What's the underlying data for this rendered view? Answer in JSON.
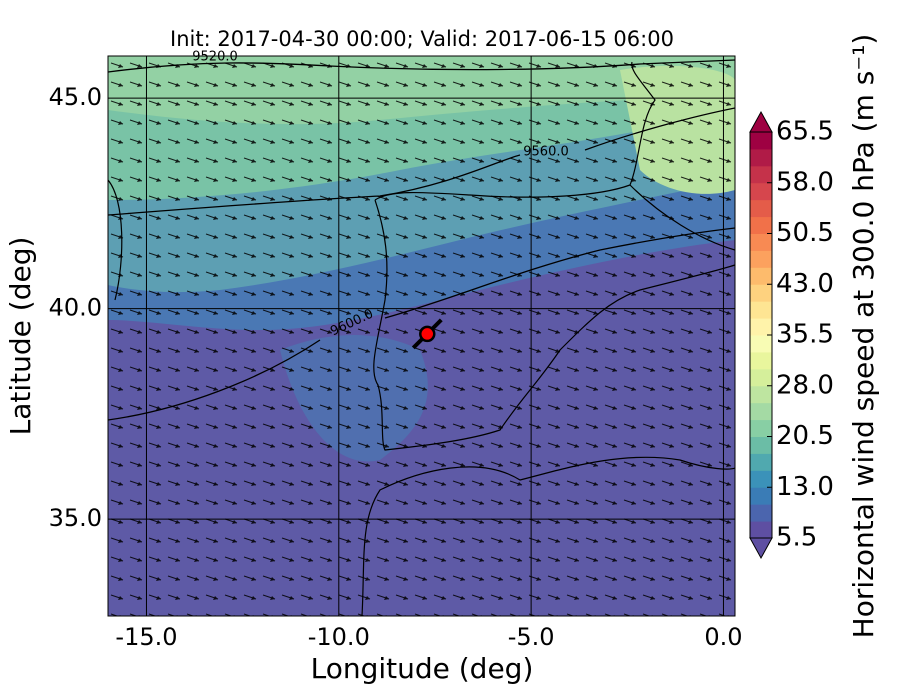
{
  "chart_data": {
    "type": "map",
    "title": "Init: 2017-04-30 00:00; Valid: 2017-06-15 06:00",
    "x_label": "Longitude (deg)",
    "y_label": "Latitude (deg)",
    "xlim": [
      -16,
      0.3
    ],
    "ylim": [
      32.7,
      46.0
    ],
    "xticks": [
      {
        "value": -15,
        "label": "-15.0"
      },
      {
        "value": -10,
        "label": "-10.0"
      },
      {
        "value": -5,
        "label": "-5.0"
      },
      {
        "value": 0,
        "label": "0.0"
      }
    ],
    "yticks": [
      {
        "value": 35,
        "label": "35.0"
      },
      {
        "value": 40,
        "label": "40.0"
      },
      {
        "value": 45,
        "label": "45.0"
      }
    ],
    "grid": true,
    "contour_labels": [
      "9520.0",
      "9560.0",
      "9600.0"
    ],
    "markers": [
      {
        "x": -7.7,
        "y": 39.4,
        "color": "#ff0000"
      }
    ],
    "colorbar": {
      "label": "Horizontal wind speed at 300.0 hPa (m s⁻¹)",
      "lim": [
        5.5,
        65.5
      ],
      "ticks": [
        5.5,
        {
          "value": 13,
          "label": "13.0"
        },
        20.5,
        {
          "value": 28,
          "label": "28.0"
        },
        35.5,
        {
          "value": 43,
          "label": "43.0"
        },
        50.5,
        {
          "value": 58,
          "label": "58.0"
        },
        65.5
      ],
      "colors": [
        "#5e4fa2",
        "#4b65ae",
        "#3a7cb6",
        "#3b92b9",
        "#50a9af",
        "#6bbda6",
        "#88cfa4",
        "#a4daa4",
        "#bee5a0",
        "#d5ef9b",
        "#e9f69d",
        "#f8fcb4",
        "#fff3aa",
        "#fee593",
        "#fed27f",
        "#fdbb6c",
        "#fca15e",
        "#f88a53",
        "#f17149",
        "#e45c49",
        "#d6464d",
        "#c5324a",
        "#b01b47",
        "#9e0142"
      ]
    }
  }
}
